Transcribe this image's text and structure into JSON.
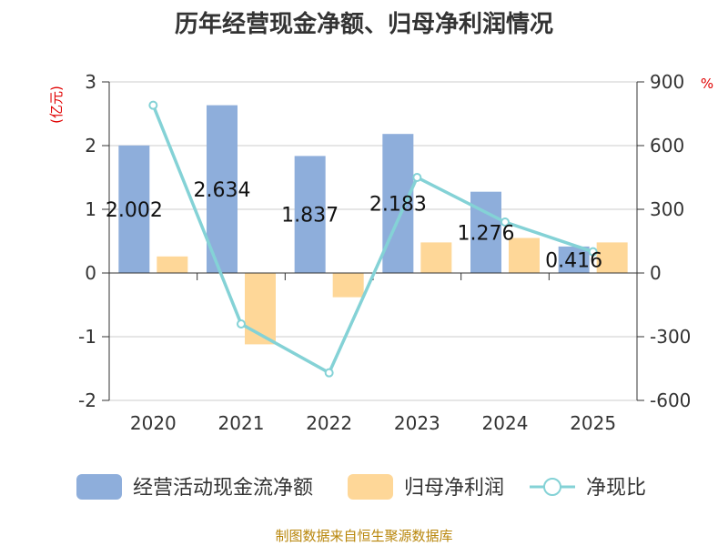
{
  "title": "历年经营现金净额、归母净利润情况",
  "source": "制图数据来自恒生聚源数据库",
  "colors": {
    "cash_flow": "#8eaedb",
    "net_profit": "#fed798",
    "ratio": "#84d2d6",
    "axis": "#333333",
    "grid": "#cccccc",
    "unit": "#e00000",
    "source": "#b8860b"
  },
  "chart_data": {
    "type": "bar",
    "categories": [
      "2020",
      "2021",
      "2022",
      "2023",
      "2024",
      "2025"
    ],
    "series": [
      {
        "name": "经营活动现金流净额",
        "type": "bar",
        "axis": "left",
        "values": [
          2.002,
          2.634,
          1.837,
          2.183,
          1.276,
          0.416
        ]
      },
      {
        "name": "归母净利润",
        "type": "bar",
        "axis": "left",
        "values": [
          0.26,
          -1.12,
          -0.38,
          0.48,
          0.55,
          0.48
        ]
      },
      {
        "name": "净现比",
        "type": "line",
        "axis": "right",
        "values": [
          790,
          -240,
          -470,
          450,
          240,
          100
        ]
      }
    ],
    "data_labels": [
      "2.002",
      "2.634",
      "1.837",
      "2.183",
      "1.276",
      "0.416"
    ],
    "left_axis": {
      "label": "(亿元)",
      "min": -2,
      "max": 3,
      "ticks": [
        "3",
        "2",
        "1",
        "0",
        "-1",
        "-2"
      ]
    },
    "right_axis": {
      "label": "%",
      "min": -600,
      "max": 900,
      "ticks": [
        "900",
        "600",
        "300",
        "0",
        "-300",
        "-600"
      ]
    },
    "legend": [
      "经营活动现金流净额",
      "归母净利润",
      "净现比"
    ],
    "legend_position": "bottom",
    "grid": true
  }
}
